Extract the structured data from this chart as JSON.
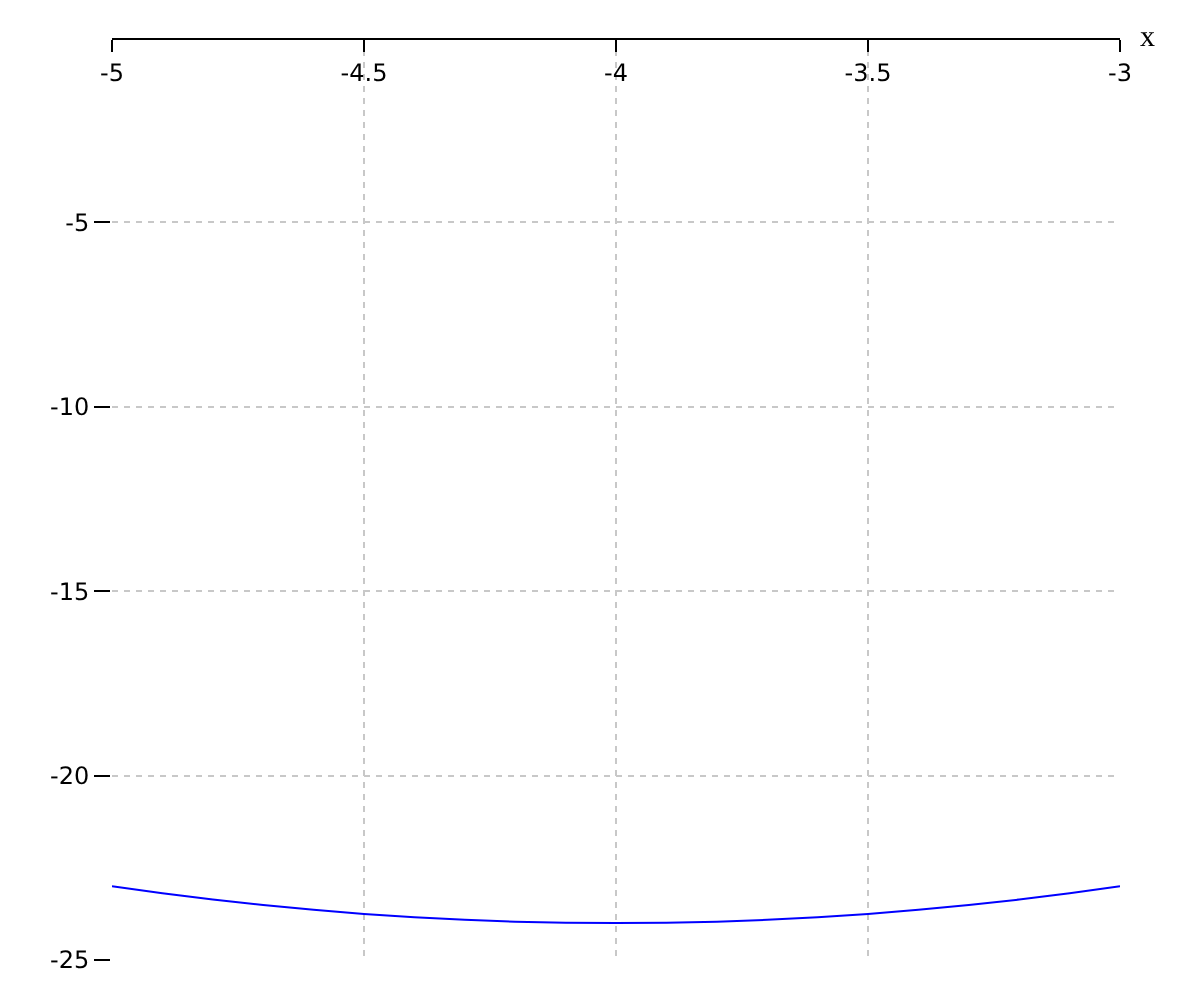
{
  "chart_data": {
    "type": "line",
    "xlabel": "x",
    "x": [
      -5,
      -4.9,
      -4.8,
      -4.7,
      -4.6,
      -4.5,
      -4.4,
      -4.3,
      -4.2,
      -4.1,
      -4,
      -3.9,
      -3.8,
      -3.7,
      -3.6,
      -3.5,
      -3.4,
      -3.3,
      -3.2,
      -3.1,
      -3
    ],
    "series": [
      {
        "color": "#0000ff",
        "values": [
          -23,
          -23.19,
          -23.36,
          -23.51,
          -23.64,
          -23.75,
          -23.84,
          -23.91,
          -23.96,
          -23.99,
          -24,
          -23.99,
          -23.96,
          -23.91,
          -23.84,
          -23.75,
          -23.64,
          -23.51,
          -23.36,
          -23.19,
          -23
        ]
      }
    ],
    "xlim": [
      -5,
      -3
    ],
    "xticks": [
      -5,
      -4.5,
      -4,
      -3.5,
      -3
    ],
    "ylim": [
      -25,
      0
    ],
    "yticks": [
      -5,
      -10,
      -15,
      -20,
      -25
    ],
    "grid": true,
    "marker": "none",
    "line_style": "solid"
  }
}
